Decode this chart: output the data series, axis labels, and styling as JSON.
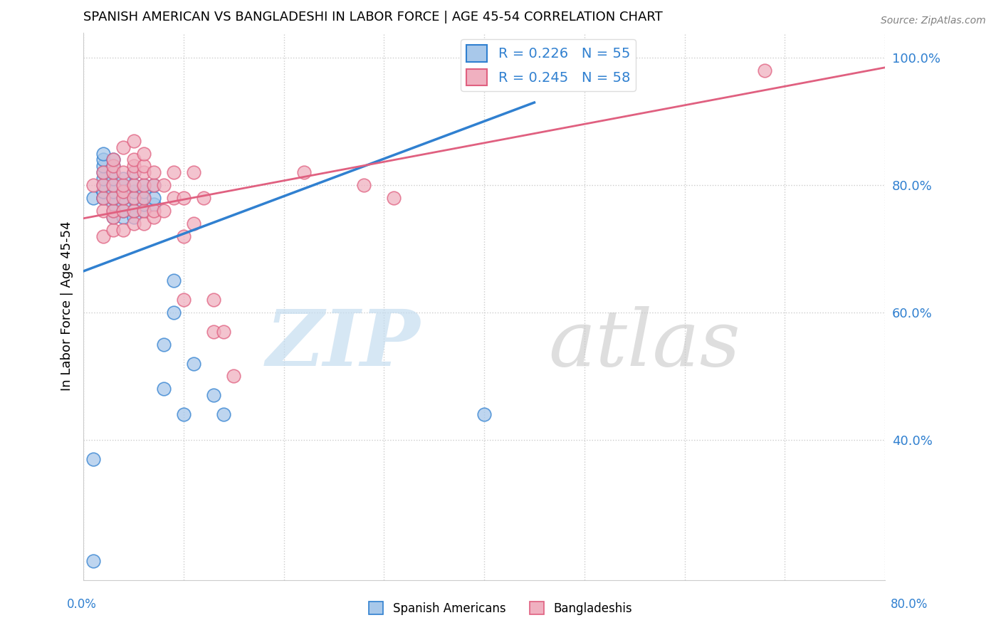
{
  "title": "SPANISH AMERICAN VS BANGLADESHI IN LABOR FORCE | AGE 45-54 CORRELATION CHART",
  "source": "Source: ZipAtlas.com",
  "ylabel": "In Labor Force | Age 45-54",
  "xlim": [
    0.0,
    0.8
  ],
  "ylim": [
    0.18,
    1.04
  ],
  "yticks": [
    0.4,
    0.6,
    0.8,
    1.0
  ],
  "ytick_labels": [
    "40.0%",
    "60.0%",
    "80.0%",
    "100.0%"
  ],
  "blue_R": 0.226,
  "blue_N": 55,
  "pink_R": 0.245,
  "pink_N": 58,
  "blue_color": "#a8c8ea",
  "pink_color": "#f0b0c0",
  "blue_line_color": "#3080d0",
  "pink_line_color": "#e06080",
  "legend_label_blue": "Spanish Americans",
  "legend_label_pink": "Bangladeshis",
  "blue_scatter_x": [
    0.01,
    0.01,
    0.01,
    0.02,
    0.02,
    0.02,
    0.02,
    0.02,
    0.02,
    0.02,
    0.02,
    0.02,
    0.02,
    0.02,
    0.03,
    0.03,
    0.03,
    0.03,
    0.03,
    0.03,
    0.03,
    0.03,
    0.03,
    0.03,
    0.03,
    0.04,
    0.04,
    0.04,
    0.04,
    0.04,
    0.04,
    0.04,
    0.05,
    0.05,
    0.05,
    0.05,
    0.05,
    0.05,
    0.06,
    0.06,
    0.06,
    0.06,
    0.06,
    0.07,
    0.07,
    0.07,
    0.08,
    0.08,
    0.09,
    0.09,
    0.1,
    0.11,
    0.13,
    0.14,
    0.4
  ],
  "blue_scatter_y": [
    0.21,
    0.37,
    0.78,
    0.78,
    0.78,
    0.79,
    0.79,
    0.8,
    0.8,
    0.81,
    0.82,
    0.83,
    0.84,
    0.85,
    0.75,
    0.76,
    0.77,
    0.78,
    0.78,
    0.79,
    0.8,
    0.81,
    0.82,
    0.83,
    0.84,
    0.75,
    0.76,
    0.77,
    0.78,
    0.79,
    0.8,
    0.81,
    0.75,
    0.76,
    0.78,
    0.79,
    0.8,
    0.82,
    0.76,
    0.77,
    0.78,
    0.79,
    0.8,
    0.77,
    0.78,
    0.8,
    0.48,
    0.55,
    0.6,
    0.65,
    0.44,
    0.52,
    0.47,
    0.44,
    0.44
  ],
  "pink_scatter_x": [
    0.01,
    0.02,
    0.02,
    0.02,
    0.02,
    0.02,
    0.03,
    0.03,
    0.03,
    0.03,
    0.03,
    0.03,
    0.03,
    0.03,
    0.04,
    0.04,
    0.04,
    0.04,
    0.04,
    0.04,
    0.04,
    0.05,
    0.05,
    0.05,
    0.05,
    0.05,
    0.05,
    0.05,
    0.05,
    0.06,
    0.06,
    0.06,
    0.06,
    0.06,
    0.06,
    0.06,
    0.07,
    0.07,
    0.07,
    0.07,
    0.08,
    0.08,
    0.09,
    0.09,
    0.1,
    0.1,
    0.1,
    0.11,
    0.11,
    0.12,
    0.13,
    0.13,
    0.14,
    0.15,
    0.22,
    0.28,
    0.31,
    0.68
  ],
  "pink_scatter_y": [
    0.8,
    0.72,
    0.76,
    0.78,
    0.8,
    0.82,
    0.73,
    0.75,
    0.76,
    0.78,
    0.8,
    0.82,
    0.83,
    0.84,
    0.73,
    0.76,
    0.78,
    0.79,
    0.8,
    0.82,
    0.86,
    0.74,
    0.76,
    0.78,
    0.8,
    0.82,
    0.83,
    0.84,
    0.87,
    0.74,
    0.76,
    0.78,
    0.8,
    0.82,
    0.83,
    0.85,
    0.75,
    0.76,
    0.8,
    0.82,
    0.76,
    0.8,
    0.78,
    0.82,
    0.62,
    0.72,
    0.78,
    0.74,
    0.82,
    0.78,
    0.57,
    0.62,
    0.57,
    0.5,
    0.82,
    0.8,
    0.78,
    0.98
  ],
  "blue_trend_x": [
    0.0,
    0.45
  ],
  "blue_trend_y": [
    0.665,
    0.93
  ],
  "pink_trend_x": [
    0.0,
    0.8
  ],
  "pink_trend_y": [
    0.748,
    0.985
  ]
}
